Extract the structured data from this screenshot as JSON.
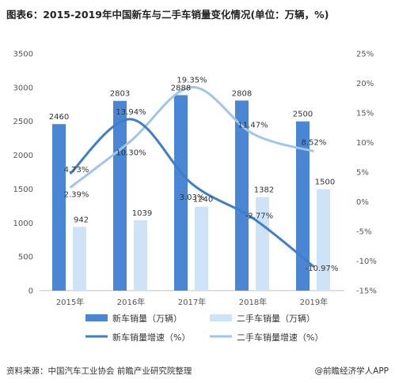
{
  "title": "图表6：2015-2019年中国新车与二手车销量变化情况(单位：万辆，%)",
  "source": "资料来源：中国汽车工业协会 前瞻产业研究院整理",
  "brand": "@前瞻经济学人APP",
  "colors": {
    "new_bar": "#4a86d4",
    "used_bar": "#cfe3f7",
    "new_line": "#3d7fc9",
    "used_line": "#9fc6ea"
  },
  "chart_data": {
    "type": "bar",
    "categories": [
      "2015年",
      "2016年",
      "2017年",
      "2018年",
      "2019年"
    ],
    "series": [
      {
        "name": "新车销量（万辆）",
        "type": "bar",
        "axis": "left",
        "values": [
          2460,
          2803,
          2888,
          2808,
          2500
        ],
        "labels": [
          "2460",
          "2803",
          "2888",
          "2808",
          "2500"
        ]
      },
      {
        "name": "二手车销量（万辆）",
        "type": "bar",
        "axis": "left",
        "values": [
          942,
          1039,
          1240,
          1382,
          1500
        ],
        "labels": [
          "942",
          "1039",
          "1240",
          "1382",
          "1500"
        ]
      },
      {
        "name": "新车销量增速（%）",
        "type": "line",
        "axis": "right",
        "values": [
          4.73,
          13.94,
          3.03,
          -2.77,
          -10.97
        ],
        "labels": [
          "4.73%",
          "13.94%",
          "3.03%",
          "-2.77%",
          "-10.97%"
        ]
      },
      {
        "name": "二手车销量增速（%）",
        "type": "line",
        "axis": "right",
        "values": [
          2.39,
          10.3,
          19.35,
          11.47,
          8.52
        ],
        "labels": [
          "2.39%",
          "10.30%",
          "19.35%",
          "11.47%",
          "8.52%"
        ]
      }
    ],
    "y_left": {
      "min": 0,
      "max": 3500,
      "ticks": [
        "0",
        "500",
        "1000",
        "1500",
        "2000",
        "2500",
        "3000",
        "3500"
      ]
    },
    "y_right": {
      "min": -15,
      "max": 25,
      "ticks": [
        "-15%",
        "-10%",
        "-5%",
        "0%",
        "5%",
        "10%",
        "15%",
        "20%",
        "25%"
      ]
    },
    "legend_position": "bottom",
    "grid": false
  }
}
